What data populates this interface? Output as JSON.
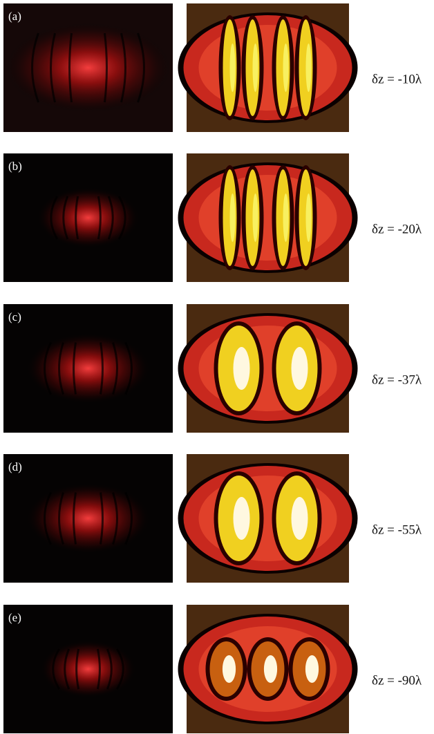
{
  "panels": [
    {
      "label": "(a)",
      "caption": "δz = -10λ"
    },
    {
      "label": "(b)",
      "caption": "δz = -20λ"
    },
    {
      "label": "(c)",
      "caption": "δz = -37λ"
    },
    {
      "label": "(d)",
      "caption": "δz = -55λ"
    },
    {
      "label": "(e)",
      "caption": "δz = -90λ"
    }
  ]
}
